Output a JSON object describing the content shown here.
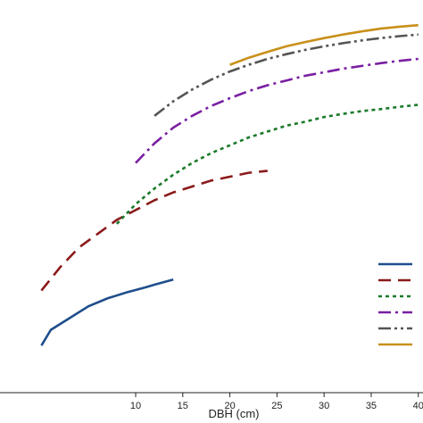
{
  "chart_data": {
    "type": "line",
    "xlabel": "DBH (cm)",
    "ylabel": "",
    "xlim": [
      -4.4,
      40.5
    ],
    "ylim": [
      0,
      1
    ],
    "x_ticks": [
      "10",
      "15",
      "20",
      "25",
      "30",
      "35",
      "40"
    ],
    "grid": false,
    "legend": "right",
    "series": [
      {
        "name": "",
        "color": "#1f4e8c",
        "dash": "solid",
        "x": [
          0,
          1,
          3,
          5,
          7,
          9,
          11,
          12,
          14
        ],
        "y": [
          0.12,
          0.16,
          0.19,
          0.22,
          0.24,
          0.255,
          0.268,
          0.275,
          0.288
        ]
      },
      {
        "name": "",
        "color": "#8b1a1a",
        "dash": "long",
        "x": [
          0,
          2,
          4,
          6,
          8,
          10,
          12,
          14,
          16,
          18,
          20,
          22,
          24
        ],
        "y": [
          0.26,
          0.32,
          0.37,
          0.405,
          0.44,
          0.465,
          0.49,
          0.51,
          0.525,
          0.54,
          0.55,
          0.56,
          0.565
        ]
      },
      {
        "name": "",
        "color": "#1a7a2a",
        "dash": "dot",
        "x": [
          8,
          10,
          12,
          14,
          16,
          18,
          20,
          22,
          24,
          26,
          28,
          30,
          32,
          34,
          36,
          38,
          40
        ],
        "y": [
          0.43,
          0.48,
          0.52,
          0.555,
          0.585,
          0.61,
          0.63,
          0.65,
          0.665,
          0.68,
          0.69,
          0.702,
          0.71,
          0.717,
          0.722,
          0.728,
          0.733
        ]
      },
      {
        "name": "",
        "color": "#7a1fa2",
        "dash": "dashdot",
        "x": [
          10,
          12,
          14,
          16,
          18,
          20,
          22,
          24,
          26,
          28,
          30,
          32,
          34,
          36,
          38,
          40
        ],
        "y": [
          0.585,
          0.635,
          0.675,
          0.705,
          0.73,
          0.75,
          0.768,
          0.783,
          0.795,
          0.807,
          0.816,
          0.825,
          0.832,
          0.839,
          0.845,
          0.85
        ]
      },
      {
        "name": "",
        "color": "#555555",
        "dash": "dashdotdot",
        "x": [
          12,
          14,
          16,
          18,
          20,
          22,
          24,
          26,
          28,
          30,
          32,
          34,
          36,
          38,
          40
        ],
        "y": [
          0.705,
          0.742,
          0.772,
          0.797,
          0.818,
          0.835,
          0.85,
          0.862,
          0.873,
          0.882,
          0.89,
          0.897,
          0.903,
          0.908,
          0.912
        ]
      },
      {
        "name": "",
        "color": "#c8901a",
        "dash": "solid",
        "x": [
          20,
          22,
          24,
          26,
          28,
          30,
          32,
          34,
          36,
          38,
          40
        ],
        "y": [
          0.835,
          0.853,
          0.868,
          0.882,
          0.893,
          0.903,
          0.912,
          0.92,
          0.927,
          0.932,
          0.936
        ]
      }
    ]
  }
}
